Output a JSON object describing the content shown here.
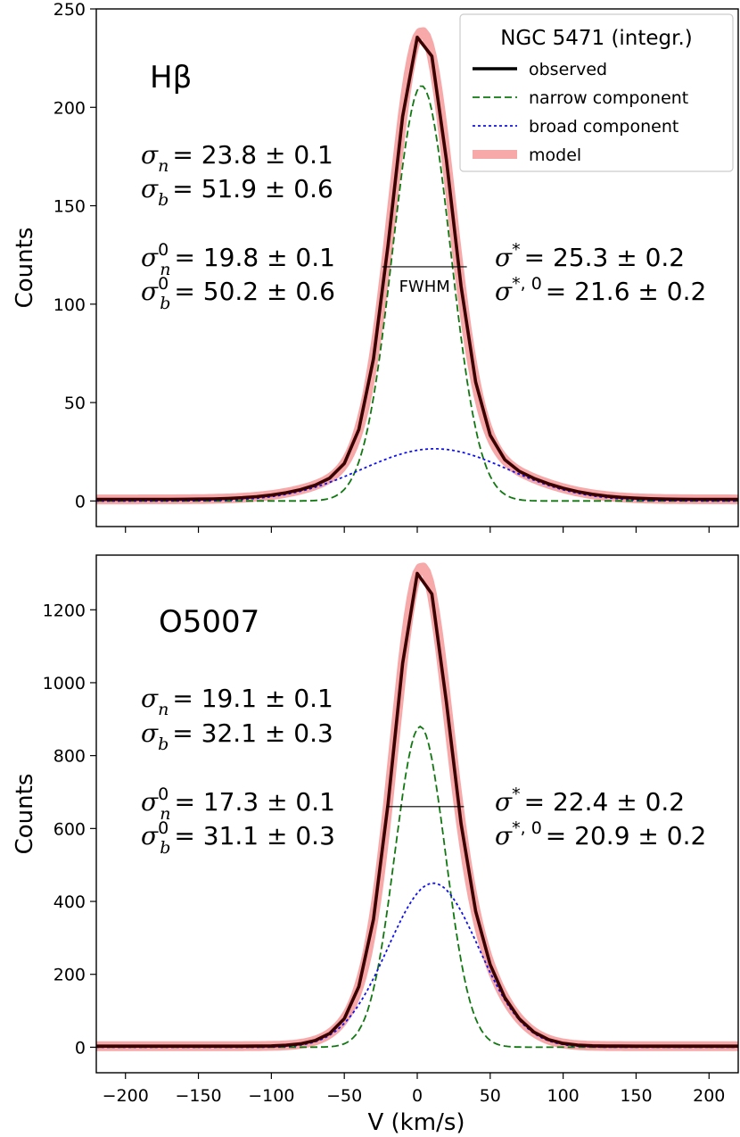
{
  "figure": {
    "shared_x": {
      "label": "V (km/s)",
      "range": [
        -220,
        220
      ],
      "ticks": [
        -200,
        -150,
        -100,
        -50,
        0,
        50,
        100,
        150,
        200
      ],
      "tick_labels": [
        "−200",
        "−150",
        "−100",
        "−50",
        "0",
        "50",
        "100",
        "150",
        "200"
      ]
    }
  },
  "chart_data": [
    {
      "type": "line",
      "panel": "top",
      "line_label": "Hβ",
      "xlabel": "V (km/s)",
      "ylabel": "Counts",
      "xlim": [
        -220,
        220
      ],
      "ylim": [
        -13,
        250
      ],
      "yticks": [
        0,
        50,
        100,
        150,
        200,
        250
      ],
      "legend": {
        "title": "NGC 5471 (integr.)",
        "placement": "top-right",
        "entries": [
          {
            "label": "observed",
            "color": "#000000",
            "style": "solid-thick"
          },
          {
            "label": "narrow component",
            "color": "#117711",
            "style": "dashed"
          },
          {
            "label": "broad component",
            "color": "#1111ee",
            "style": "dotted"
          },
          {
            "label": "model",
            "color": "#f7a8a8",
            "style": "solid-wide"
          }
        ]
      },
      "annotations": {
        "left": [
          {
            "sym": "σ",
            "sub": "n",
            "value": "= 23.8 ± 0.1"
          },
          {
            "sym": "σ",
            "sub": "b",
            "value": "= 51.9 ± 0.6"
          },
          {
            "sym": "σ",
            "sub": "n",
            "sup": "0",
            "value": "= 19.8 ± 0.1"
          },
          {
            "sym": "σ",
            "sub": "b",
            "sup": "0",
            "value": "= 50.2 ± 0.6"
          }
        ],
        "right": [
          {
            "sym": "σ",
            "sup": "*",
            "value": "= 25.3 ± 0.2"
          },
          {
            "sym": "σ",
            "sup": "*, 0",
            "value": "= 21.6 ± 0.2"
          }
        ],
        "fwhm": {
          "label": "FWHM",
          "x_range": [
            -24,
            34
          ],
          "y": 119
        }
      },
      "series": [
        {
          "name": "narrow component",
          "model": "gaussian",
          "amplitude": 211,
          "center": 3,
          "sigma": 19.8,
          "offset": 0
        },
        {
          "name": "broad component",
          "model": "gaussian",
          "amplitude": 26.5,
          "center": 12,
          "sigma": 50.2,
          "offset": 0
        },
        {
          "name": "observed",
          "model": "sum",
          "offset": 0.8,
          "profile_scale": 1.12
        },
        {
          "name": "model",
          "model": "sum",
          "offset": 0.8,
          "profile_scale": 1.12
        }
      ],
      "peak_value": 238
    },
    {
      "type": "line",
      "panel": "bottom",
      "line_label": "O5007",
      "xlabel": "V (km/s)",
      "ylabel": "Counts",
      "xlim": [
        -220,
        220
      ],
      "ylim": [
        -70,
        1350
      ],
      "yticks": [
        0,
        200,
        400,
        600,
        800,
        1000,
        1200
      ],
      "annotations": {
        "left": [
          {
            "sym": "σ",
            "sub": "n",
            "value": "= 19.1 ± 0.1"
          },
          {
            "sym": "σ",
            "sub": "b",
            "value": "= 32.1 ± 0.3"
          },
          {
            "sym": "σ",
            "sub": "n",
            "sup": "0",
            "value": "= 17.3 ± 0.1"
          },
          {
            "sym": "σ",
            "sub": "b",
            "sup": "0",
            "value": "= 31.1 ± 0.3"
          }
        ],
        "right": [
          {
            "sym": "σ",
            "sup": "*",
            "value": "= 22.4 ± 0.2"
          },
          {
            "sym": "σ",
            "sup": "*, 0",
            "value": "= 20.9 ± 0.2"
          }
        ],
        "fwhm": {
          "label": "",
          "x_range": [
            -21,
            32
          ],
          "y": 660
        }
      },
      "series": [
        {
          "name": "narrow component",
          "model": "gaussian",
          "amplitude": 880,
          "center": 2,
          "sigma": 17.3,
          "offset": 0
        },
        {
          "name": "broad component",
          "model": "gaussian",
          "amplitude": 450,
          "center": 11,
          "sigma": 31.1,
          "offset": 0
        },
        {
          "name": "observed",
          "model": "sum",
          "offset": 3,
          "profile_scale": 1.04
        },
        {
          "name": "model",
          "model": "sum",
          "offset": 3,
          "profile_scale": 1.04
        }
      ],
      "peak_value": 1320
    }
  ]
}
